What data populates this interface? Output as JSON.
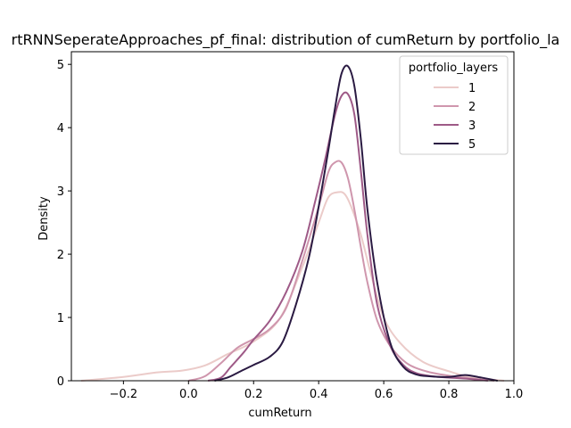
{
  "chart_data": {
    "type": "line",
    "title": "rtRNNSeperateApproaches_pf_final: distribution of cumReturn by portfolio_la",
    "xlabel": "cumReturn",
    "ylabel": "Density",
    "xlim": [
      -0.36,
      1.0
    ],
    "ylim": [
      0,
      5.2
    ],
    "xticks": [
      -0.2,
      0.0,
      0.2,
      0.4,
      0.6,
      0.8,
      1.0
    ],
    "xtick_labels": [
      "−0.2",
      "0.0",
      "0.2",
      "0.4",
      "0.6",
      "0.8",
      "1.0"
    ],
    "yticks": [
      0,
      1,
      2,
      3,
      4,
      5
    ],
    "ytick_labels": [
      "0",
      "1",
      "2",
      "3",
      "4",
      "5"
    ],
    "grid": false,
    "legend": {
      "title": "portfolio_layers",
      "placement": "top-right"
    },
    "series": [
      {
        "name": "1",
        "color": "#ebcbc9",
        "x": [
          -0.33,
          -0.2,
          -0.1,
          -0.02,
          0.05,
          0.12,
          0.2,
          0.28,
          0.35,
          0.4,
          0.43,
          0.46,
          0.48,
          0.5,
          0.53,
          0.56,
          0.6,
          0.65,
          0.72,
          0.8,
          0.87,
          0.93,
          0.97
        ],
        "y": [
          0.0,
          0.06,
          0.13,
          0.16,
          0.24,
          0.42,
          0.62,
          0.98,
          1.8,
          2.5,
          2.9,
          2.98,
          2.95,
          2.75,
          2.3,
          1.7,
          1.0,
          0.6,
          0.3,
          0.15,
          0.05,
          0.02,
          0.0
        ]
      },
      {
        "name": "2",
        "color": "#cf96ad",
        "x": [
          0.0,
          0.05,
          0.1,
          0.15,
          0.2,
          0.25,
          0.3,
          0.35,
          0.4,
          0.43,
          0.45,
          0.47,
          0.49,
          0.51,
          0.53,
          0.55,
          0.58,
          0.62,
          0.67,
          0.73,
          0.8,
          0.88,
          0.94
        ],
        "y": [
          0.0,
          0.07,
          0.28,
          0.52,
          0.66,
          0.82,
          1.15,
          1.9,
          2.75,
          3.3,
          3.45,
          3.45,
          3.2,
          2.7,
          2.1,
          1.55,
          0.95,
          0.55,
          0.28,
          0.15,
          0.08,
          0.03,
          0.0
        ]
      },
      {
        "name": "3",
        "color": "#9e5a87",
        "x": [
          0.06,
          0.1,
          0.13,
          0.17,
          0.2,
          0.25,
          0.3,
          0.35,
          0.39,
          0.42,
          0.45,
          0.47,
          0.49,
          0.51,
          0.53,
          0.55,
          0.58,
          0.62,
          0.66,
          0.7,
          0.75,
          0.8,
          0.86,
          0.92
        ],
        "y": [
          0.0,
          0.05,
          0.22,
          0.45,
          0.65,
          0.95,
          1.4,
          2.05,
          2.85,
          3.5,
          4.2,
          4.5,
          4.53,
          4.2,
          3.3,
          2.3,
          1.2,
          0.55,
          0.25,
          0.12,
          0.07,
          0.05,
          0.03,
          0.0
        ]
      },
      {
        "name": "5",
        "color": "#2a1a42",
        "x": [
          0.08,
          0.12,
          0.16,
          0.2,
          0.25,
          0.29,
          0.33,
          0.37,
          0.4,
          0.43,
          0.45,
          0.47,
          0.49,
          0.51,
          0.53,
          0.55,
          0.58,
          0.62,
          0.66,
          0.7,
          0.74,
          0.8,
          0.85,
          0.9,
          0.95
        ],
        "y": [
          0.0,
          0.05,
          0.15,
          0.25,
          0.38,
          0.62,
          1.2,
          1.95,
          2.75,
          3.65,
          4.3,
          4.85,
          4.97,
          4.65,
          3.8,
          2.7,
          1.55,
          0.6,
          0.22,
          0.1,
          0.07,
          0.06,
          0.09,
          0.05,
          0.0
        ]
      }
    ]
  }
}
